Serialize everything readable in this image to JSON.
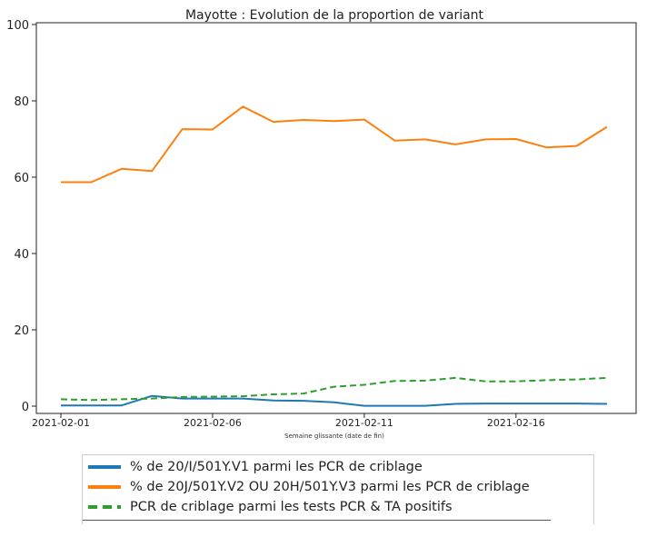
{
  "chart_data": {
    "type": "line",
    "title": "Mayotte : Evolution de la proportion de variant",
    "xlabel": "Semaine glissante (date de fin)",
    "ylabel": "",
    "ylim": [
      0,
      100
    ],
    "yticks": [
      "0",
      "20",
      "40",
      "60",
      "80",
      "100"
    ],
    "xticks": [
      "2021-02-01",
      "2021-02-06",
      "2021-02-11",
      "2021-02-16"
    ],
    "x": [
      "2021-02-01",
      "2021-02-02",
      "2021-02-03",
      "2021-02-04",
      "2021-02-05",
      "2021-02-06",
      "2021-02-07",
      "2021-02-08",
      "2021-02-09",
      "2021-02-10",
      "2021-02-11",
      "2021-02-12",
      "2021-02-13",
      "2021-02-14",
      "2021-02-15",
      "2021-02-16",
      "2021-02-17",
      "2021-02-18",
      "2021-02-19"
    ],
    "grid": false,
    "legend_position": "bottom",
    "series": [
      {
        "name": "% de 20/I/501Y.V1 parmi les PCR de criblage",
        "color": "#1f77b4",
        "style": "solid",
        "values": [
          0.2,
          0.2,
          0.2,
          2.7,
          2.0,
          2.0,
          2.0,
          1.5,
          1.4,
          1.0,
          0.1,
          0.1,
          0.1,
          0.6,
          0.7,
          0.7,
          0.7,
          0.7,
          0.6
        ]
      },
      {
        "name": "% de 20J/501Y.V2 OU 20H/501Y.V3 parmi les PCR de criblage",
        "color": "#ff7f0e",
        "style": "solid",
        "values": [
          58.7,
          58.7,
          62.2,
          61.6,
          72.6,
          72.5,
          78.5,
          74.5,
          75.0,
          74.7,
          75.1,
          69.6,
          69.9,
          68.6,
          69.9,
          70.0,
          67.8,
          68.2,
          73.2
        ]
      },
      {
        "name": "PCR de criblage parmi les tests PCR & TA positifs",
        "color": "#2ca02c",
        "style": "dashed",
        "values": [
          1.8,
          1.6,
          1.8,
          2.0,
          2.4,
          2.5,
          2.6,
          3.1,
          3.3,
          5.1,
          5.6,
          6.6,
          6.7,
          7.4,
          6.5,
          6.5,
          6.8,
          7.0,
          7.4
        ]
      }
    ]
  }
}
